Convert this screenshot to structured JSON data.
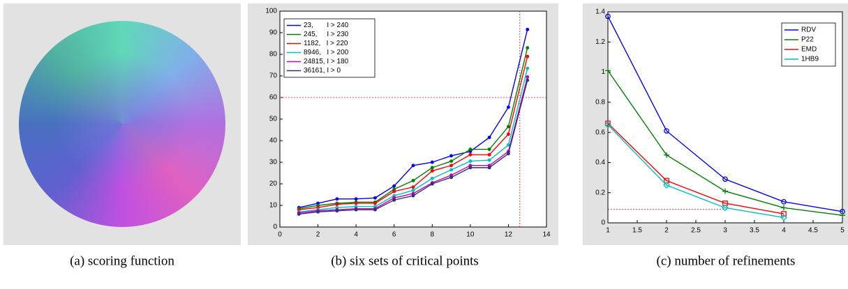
{
  "captions": [
    "(a) scoring function",
    "(b) six sets of critical points",
    "(c) number of refinements"
  ],
  "chart_data": [
    {
      "type": "line",
      "x": [
        1,
        2,
        3,
        4,
        5,
        6,
        7,
        8,
        9,
        10,
        11,
        12,
        13
      ],
      "xlim": [
        0,
        14
      ],
      "xticks": [
        0,
        2,
        4,
        6,
        8,
        10,
        12,
        14
      ],
      "ylim": [
        0,
        100
      ],
      "yticks": [
        0,
        10,
        20,
        30,
        40,
        50,
        60,
        70,
        80,
        90,
        100
      ],
      "legend": "upper left",
      "hline": 60,
      "vline": 12.6,
      "series": [
        {
          "name": "23,       I > 240",
          "color": "#0000ff",
          "marker": "dot",
          "values": [
            9,
            11,
            13,
            13,
            13.5,
            19,
            28.5,
            30,
            33,
            35,
            41.5,
            55.5,
            91.5
          ]
        },
        {
          "name": "245,     I > 230",
          "color": "#008000",
          "marker": "dot",
          "values": [
            8.5,
            10,
            11,
            11.5,
            11.5,
            17.5,
            21.5,
            27.5,
            30.5,
            36,
            36,
            46.5,
            83
          ]
        },
        {
          "name": "1182,   I > 220",
          "color": "#ff0000",
          "marker": "dot",
          "values": [
            8,
            9,
            10.5,
            11,
            11,
            16.5,
            18.5,
            26,
            28.5,
            33.5,
            33.5,
            43,
            79
          ]
        },
        {
          "name": "8946,   I > 200",
          "color": "#00c0c0",
          "marker": "dot",
          "values": [
            7,
            8,
            9,
            9.5,
            9.5,
            14.5,
            17,
            22.5,
            26.5,
            30.5,
            31,
            38,
            73.5
          ]
        },
        {
          "name": "24815, I > 180",
          "color": "#c000c0",
          "marker": "dot",
          "values": [
            6.5,
            7.5,
            8,
            8.5,
            8.5,
            13.5,
            15.5,
            20.5,
            24,
            28.5,
            28.5,
            35,
            69.5
          ]
        },
        {
          "name": "36161, I > 0",
          "color": "#303080",
          "marker": "dot",
          "values": [
            6,
            7,
            7.5,
            8,
            8,
            12.5,
            14.5,
            20,
            23,
            27.5,
            27.5,
            34,
            68
          ]
        }
      ]
    },
    {
      "type": "line",
      "x": [
        1,
        2,
        3,
        4,
        5
      ],
      "xlim": [
        1,
        5
      ],
      "xticks": [
        1,
        1.5,
        2,
        2.5,
        3,
        3.5,
        4,
        4.5,
        5
      ],
      "ylim": [
        0,
        1.4
      ],
      "yticks": [
        0,
        0.2,
        0.4,
        0.6,
        0.8,
        1,
        1.2,
        1.4
      ],
      "legend": "upper right",
      "hline": 0.09,
      "series": [
        {
          "name": "RDV",
          "color": "#0000ff",
          "marker": "circle",
          "values": [
            1.37,
            0.61,
            0.29,
            0.14,
            0.075
          ]
        },
        {
          "name": "P22",
          "color": "#008000",
          "marker": "plus",
          "values": [
            1.01,
            0.45,
            0.21,
            0.1,
            0.05
          ]
        },
        {
          "name": "EMD",
          "color": "#ff0000",
          "marker": "square",
          "values": [
            0.66,
            0.28,
            0.13,
            0.06,
            null
          ]
        },
        {
          "name": "1HB9",
          "color": "#00c0c0",
          "marker": "diamond",
          "values": [
            0.65,
            0.25,
            0.1,
            0.035,
            null
          ]
        }
      ]
    }
  ]
}
